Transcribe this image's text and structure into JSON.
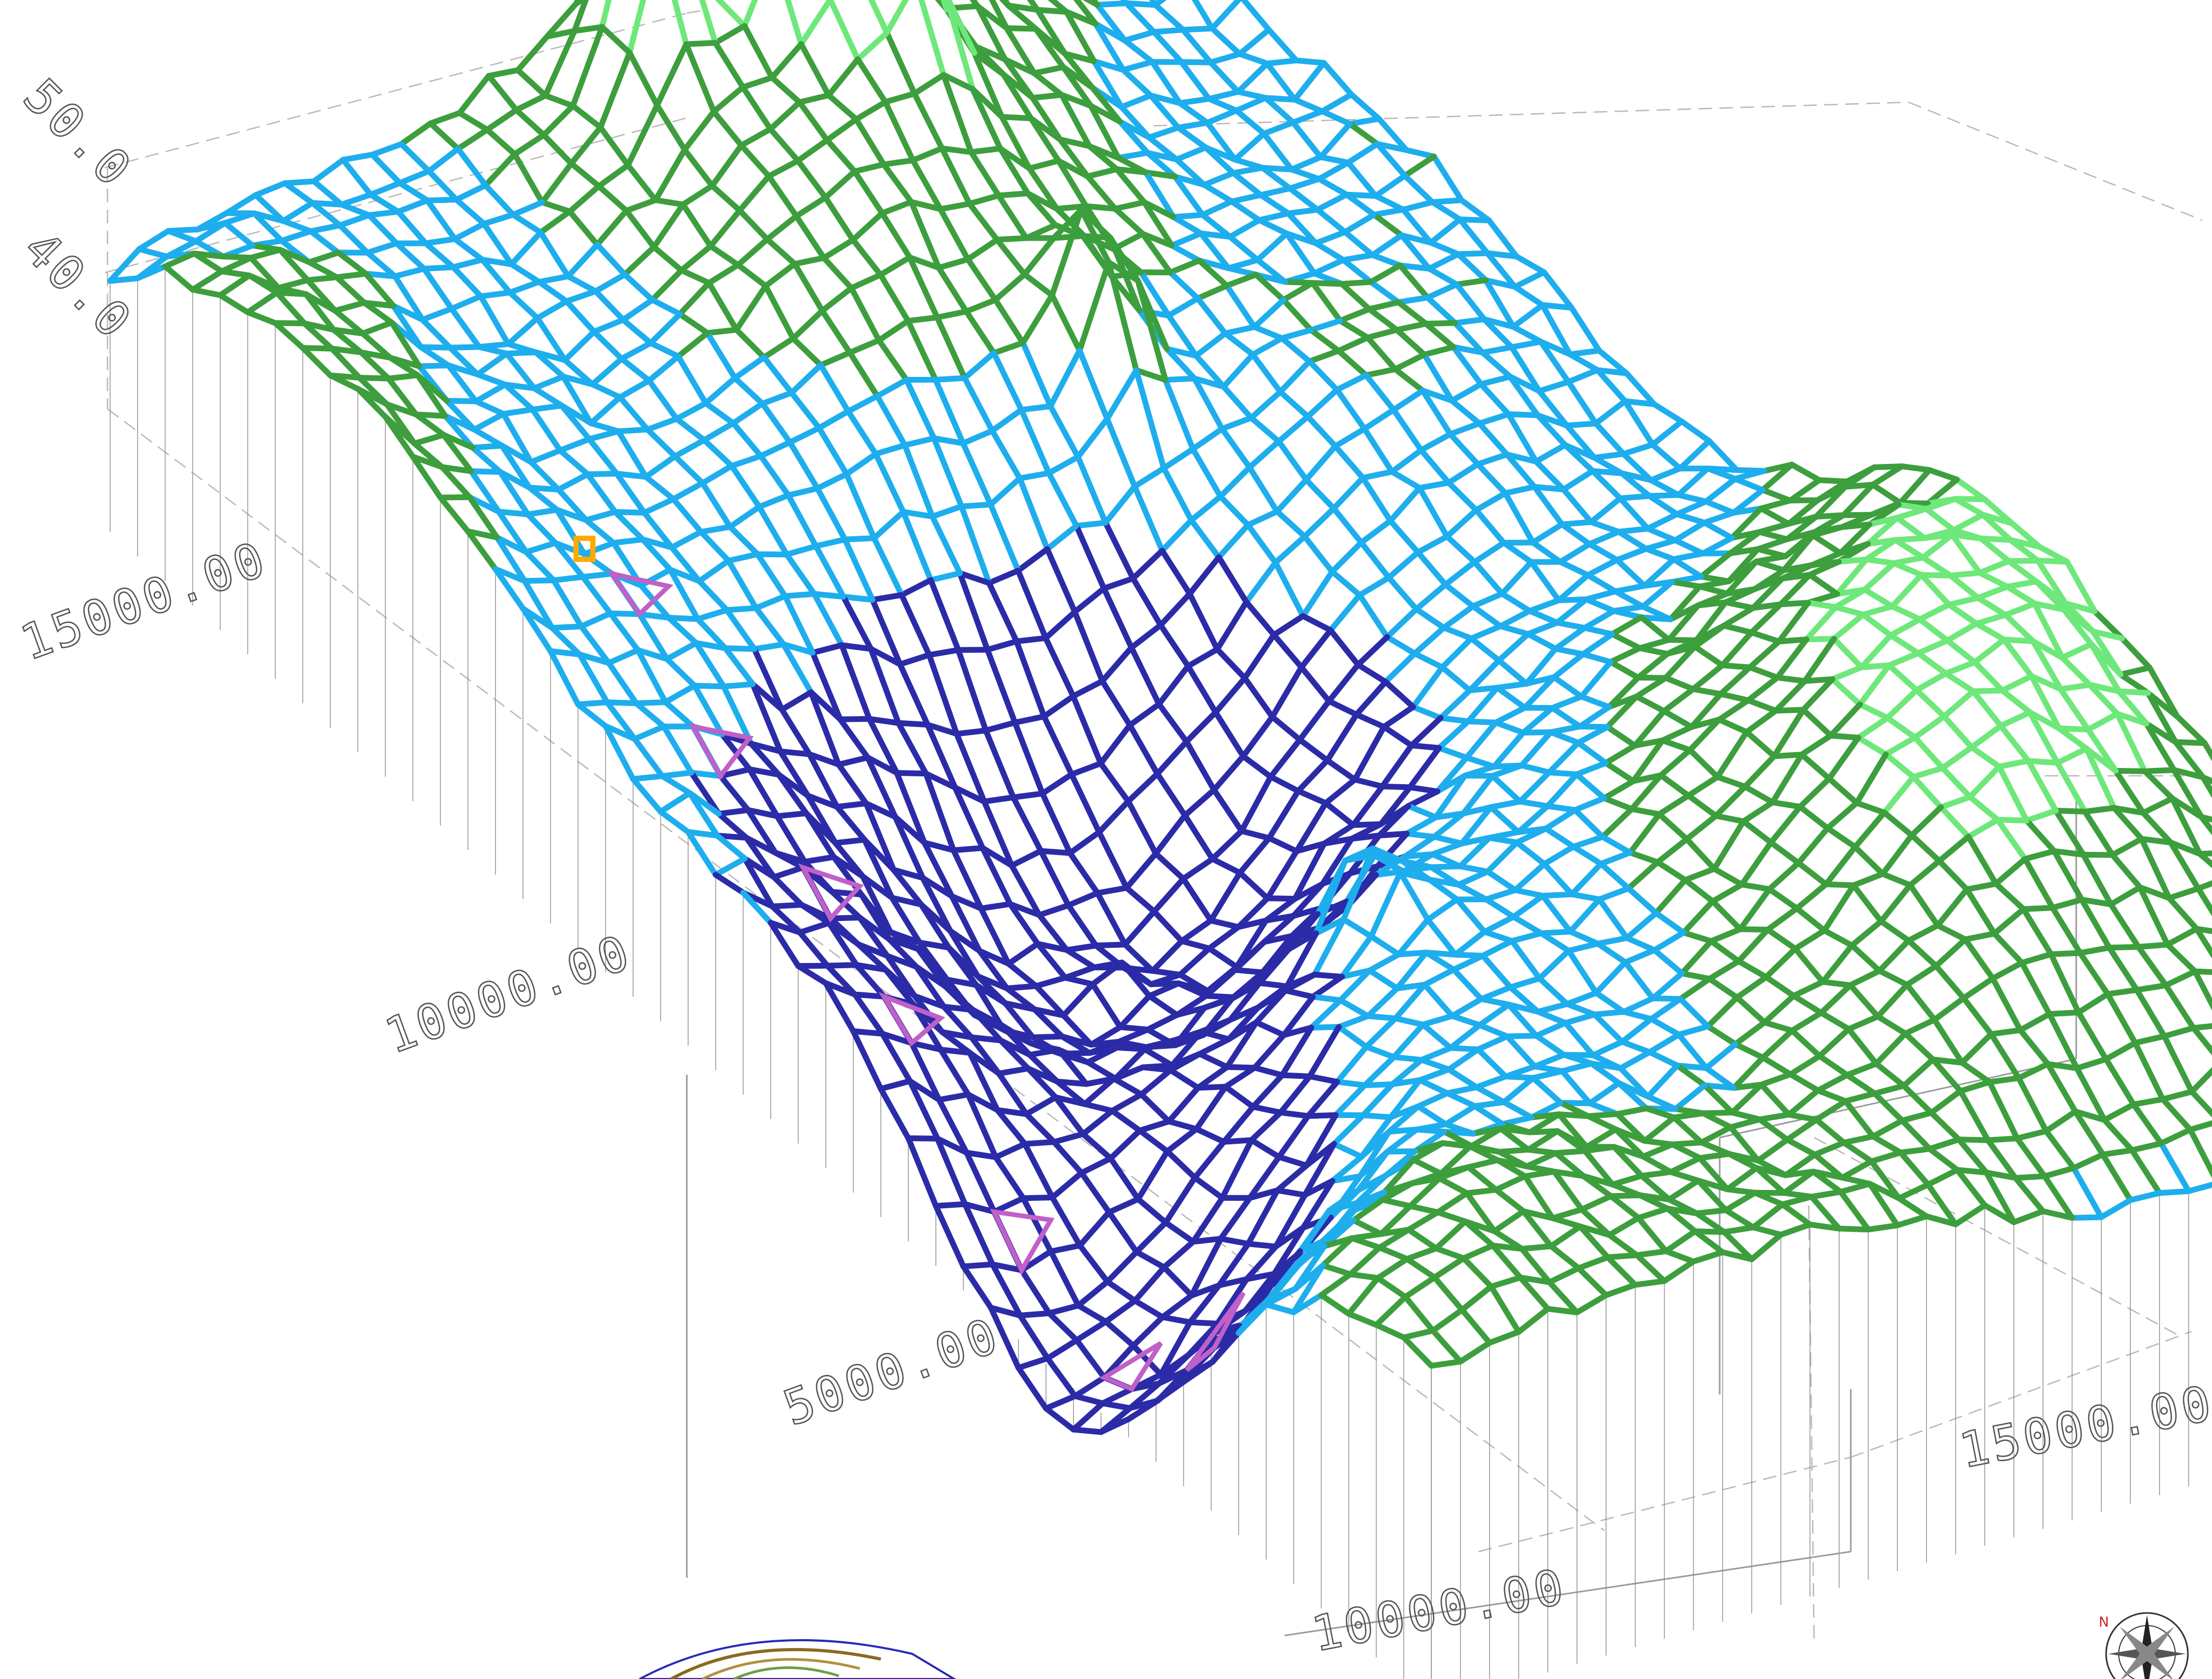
{
  "chart_data": {
    "type": "3d-surface-wireframe",
    "x_ticks": [
      "5000.00",
      "10000.00",
      "15000.00"
    ],
    "y_ticks": [
      "5000.00",
      "10000.00",
      "15000.00"
    ],
    "z_ticks": [
      "40.0",
      "50.0"
    ],
    "grid": "wireframe",
    "legend": "none",
    "elevation_colors": {
      "very_low": "#2b2ba8",
      "low": "#1eaeee",
      "mid": "#3d9e3d",
      "high": "#6ee87a",
      "accent_pink": "#c060c8",
      "accent_orange": "#ffaa00"
    },
    "compass_icon": "compass-rose-icon",
    "inset_icon": "inset-map-thumbnail"
  }
}
